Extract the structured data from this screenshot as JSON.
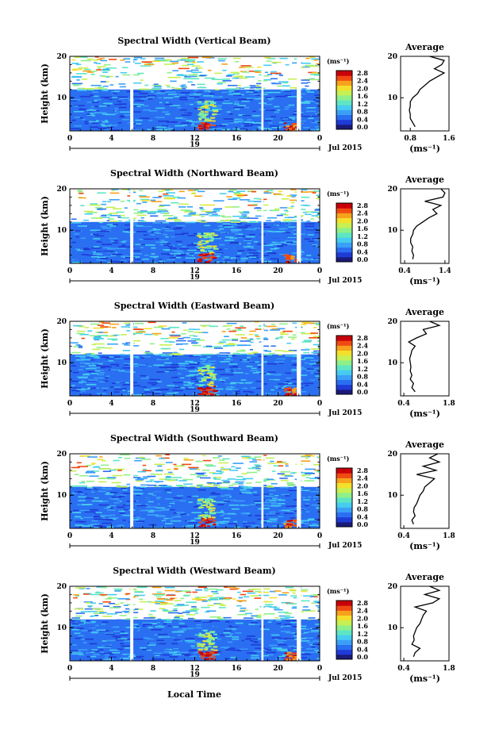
{
  "footer_label": "Local Time",
  "colorscale": [
    "#1a1a7a",
    "#1f3bd6",
    "#2a6ff2",
    "#3aa0f7",
    "#46ccf0",
    "#5ee6c4",
    "#8ff08a",
    "#c7f052",
    "#f3e02c",
    "#f7a21c",
    "#f04a12",
    "#c8000a"
  ],
  "chart_data": [
    {
      "type": "heatmap",
      "title": "Spectral Width (Vertical Beam)",
      "ylabel": "Height (km)",
      "yticks": [
        "20",
        "10"
      ],
      "xticks": [
        "0",
        "4",
        "8",
        "12",
        "16",
        "20",
        "0"
      ],
      "xlim": [
        0,
        24
      ],
      "ylim": [
        2,
        20
      ],
      "date_tick": "19",
      "date_label": "Jul 2015",
      "colorbar": {
        "unit": "(ms⁻¹)",
        "ticks": [
          "2.8",
          "2.4",
          "2.0",
          "1.6",
          "1.2",
          "0.8",
          "0.4",
          "0.0"
        ]
      },
      "profile": {
        "title": "Average",
        "xlabel": "(ms⁻¹)",
        "xticks": [
          "0.8",
          "1.6"
        ],
        "xlim": [
          0.6,
          1.6
        ],
        "yticks": [
          "20",
          "10"
        ],
        "heights": [
          3,
          4,
          5,
          6,
          7,
          8,
          9,
          10,
          11,
          12,
          13,
          14,
          15,
          16,
          17,
          18,
          19,
          20
        ],
        "values": [
          0.9,
          0.85,
          0.8,
          0.8,
          0.78,
          0.8,
          0.8,
          0.85,
          0.95,
          1.0,
          1.1,
          1.2,
          1.35,
          1.5,
          1.3,
          1.45,
          1.5,
          1.2
        ]
      }
    },
    {
      "type": "heatmap",
      "title": "Spectral Width (Northward Beam)",
      "ylabel": "Height (km)",
      "yticks": [
        "20",
        "10"
      ],
      "xticks": [
        "0",
        "4",
        "8",
        "12",
        "16",
        "20",
        "0"
      ],
      "xlim": [
        0,
        24
      ],
      "ylim": [
        2,
        20
      ],
      "date_tick": "19",
      "date_label": "Jul 2015",
      "colorbar": {
        "unit": "(ms⁻¹)",
        "ticks": [
          "2.8",
          "2.4",
          "2.0",
          "1.6",
          "1.2",
          "0.8",
          "0.4",
          "0.0"
        ]
      },
      "profile": {
        "title": "Average",
        "xlabel": "(ms⁻¹)",
        "xticks": [
          "0.4",
          "1.4"
        ],
        "xlim": [
          0.3,
          1.5
        ],
        "yticks": [
          "20",
          "10"
        ],
        "heights": [
          3,
          4,
          5,
          6,
          7,
          8,
          9,
          10,
          11,
          12,
          13,
          14,
          15,
          16,
          17,
          18,
          19,
          20
        ],
        "values": [
          0.6,
          0.62,
          0.58,
          0.6,
          0.55,
          0.55,
          0.6,
          0.62,
          0.7,
          0.85,
          1.0,
          1.2,
          1.1,
          1.3,
          0.9,
          1.35,
          1.4,
          1.3
        ]
      }
    },
    {
      "type": "heatmap",
      "title": "Spectral Width (Eastward Beam)",
      "ylabel": "Height (km)",
      "yticks": [
        "20",
        "10"
      ],
      "xticks": [
        "0",
        "4",
        "8",
        "12",
        "16",
        "20",
        "0"
      ],
      "xlim": [
        0,
        24
      ],
      "ylim": [
        2,
        20
      ],
      "date_tick": "19",
      "date_label": "Jul 2015",
      "colorbar": {
        "unit": "(ms⁻¹)",
        "ticks": [
          "2.8",
          "2.4",
          "2.0",
          "1.6",
          "1.2",
          "0.8",
          "0.4",
          "0.0"
        ]
      },
      "profile": {
        "title": "Average",
        "xlabel": "(ms⁻¹)",
        "xticks": [
          "0.4",
          "1.8"
        ],
        "xlim": [
          0.3,
          1.8
        ],
        "yticks": [
          "20",
          "10"
        ],
        "heights": [
          3,
          4,
          5,
          6,
          7,
          8,
          9,
          10,
          11,
          12,
          13,
          14,
          15,
          16,
          17,
          18,
          19,
          20
        ],
        "values": [
          0.75,
          0.65,
          0.7,
          0.6,
          0.65,
          0.6,
          0.62,
          0.6,
          0.58,
          0.62,
          0.65,
          0.75,
          0.55,
          0.8,
          1.1,
          1.0,
          1.5,
          1.2
        ]
      }
    },
    {
      "type": "heatmap",
      "title": "Spectral Width (Southward Beam)",
      "ylabel": "Height (km)",
      "yticks": [
        "20",
        "10"
      ],
      "xticks": [
        "0",
        "4",
        "8",
        "12",
        "16",
        "20",
        "0"
      ],
      "xlim": [
        0,
        24
      ],
      "ylim": [
        2,
        20
      ],
      "date_tick": "19",
      "date_label": "Jul 2015",
      "colorbar": {
        "unit": "(ms⁻¹)",
        "ticks": [
          "2.8",
          "2.4",
          "2.0",
          "1.6",
          "1.2",
          "0.8",
          "0.4",
          "0.0"
        ]
      },
      "profile": {
        "title": "Average",
        "xlabel": "(ms⁻¹)",
        "xticks": [
          "0.4",
          "1.8"
        ],
        "xlim": [
          0.3,
          1.8
        ],
        "yticks": [
          "20",
          "10"
        ],
        "heights": [
          3,
          4,
          5,
          6,
          7,
          8,
          9,
          10,
          11,
          12,
          13,
          14,
          15,
          16,
          17,
          18,
          19,
          20
        ],
        "values": [
          0.7,
          0.65,
          0.75,
          0.7,
          0.72,
          0.8,
          0.85,
          0.9,
          1.0,
          1.05,
          1.2,
          1.35,
          0.8,
          1.4,
          1.0,
          1.5,
          1.2,
          1.45
        ]
      }
    },
    {
      "type": "heatmap",
      "title": "Spectral Width (Westward Beam)",
      "ylabel": "Height (km)",
      "yticks": [
        "20",
        "10"
      ],
      "xticks": [
        "0",
        "4",
        "8",
        "12",
        "16",
        "20",
        "0"
      ],
      "xlim": [
        0,
        24
      ],
      "ylim": [
        2,
        20
      ],
      "date_tick": "19",
      "date_label": "Jul 2015",
      "colorbar": {
        "unit": "(ms⁻¹)",
        "ticks": [
          "2.8",
          "2.4",
          "2.0",
          "1.6",
          "1.2",
          "0.8",
          "0.4",
          "0.0"
        ]
      },
      "profile": {
        "title": "Average",
        "xlabel": "(ms⁻¹)",
        "xticks": [
          "0.4",
          "1.8"
        ],
        "xlim": [
          0.3,
          1.8
        ],
        "yticks": [
          "20",
          "10"
        ],
        "heights": [
          3,
          4,
          5,
          6,
          7,
          8,
          9,
          10,
          11,
          12,
          13,
          14,
          15,
          16,
          17,
          18,
          19,
          20
        ],
        "values": [
          0.7,
          0.75,
          0.9,
          0.65,
          0.72,
          0.7,
          0.75,
          0.8,
          0.9,
          0.95,
          1.0,
          1.1,
          0.75,
          1.3,
          1.5,
          1.05,
          1.5,
          1.2
        ]
      }
    }
  ]
}
